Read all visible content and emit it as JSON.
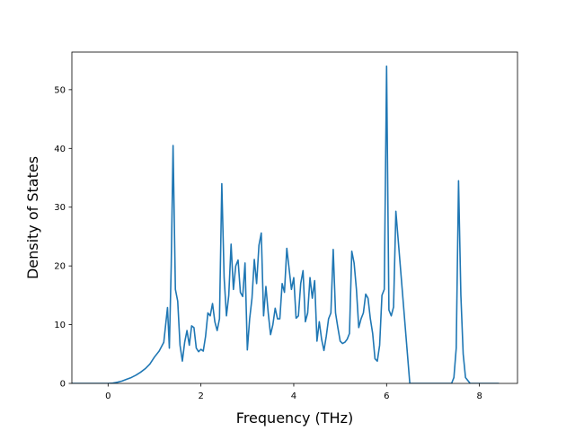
{
  "chart_data": {
    "type": "line",
    "title": "",
    "xlabel": "Frequency (THz)",
    "ylabel": "Density of States",
    "xlim": [
      -0.78,
      8.82
    ],
    "ylim": [
      0,
      56.4
    ],
    "xticks": [
      0,
      2,
      4,
      6,
      8
    ],
    "yticks": [
      0,
      10,
      20,
      30,
      40,
      50
    ],
    "grid": false,
    "color": "#1f77b4",
    "series": [
      {
        "x": [
          -0.8,
          -0.5,
          -0.2,
          0.0,
          0.1,
          0.2,
          0.3,
          0.4,
          0.5,
          0.6,
          0.7,
          0.8,
          0.9,
          1.0,
          1.1,
          1.2,
          1.28,
          1.32,
          1.36,
          1.4,
          1.45,
          1.5,
          1.55,
          1.6,
          1.65,
          1.7,
          1.75,
          1.8,
          1.85,
          1.9,
          1.95,
          2.0,
          2.05,
          2.1,
          2.15,
          2.2,
          2.25,
          2.3,
          2.35,
          2.4,
          2.45,
          2.5,
          2.55,
          2.6,
          2.65,
          2.7,
          2.75,
          2.8,
          2.85,
          2.9,
          2.95,
          3.0,
          3.05,
          3.1,
          3.15,
          3.2,
          3.25,
          3.3,
          3.35,
          3.4,
          3.45,
          3.5,
          3.55,
          3.6,
          3.65,
          3.7,
          3.75,
          3.8,
          3.85,
          3.9,
          3.95,
          4.0,
          4.05,
          4.1,
          4.15,
          4.2,
          4.25,
          4.3,
          4.35,
          4.4,
          4.45,
          4.5,
          4.55,
          4.6,
          4.65,
          4.7,
          4.75,
          4.8,
          4.85,
          4.9,
          4.95,
          5.0,
          5.05,
          5.1,
          5.15,
          5.2,
          5.25,
          5.3,
          5.35,
          5.4,
          5.45,
          5.5,
          5.55,
          5.6,
          5.65,
          5.7,
          5.75,
          5.8,
          5.85,
          5.9,
          5.95,
          6.0,
          6.05,
          6.1,
          6.15,
          6.2,
          6.5,
          7.0,
          7.3,
          7.35,
          7.4,
          7.45,
          7.5,
          7.55,
          7.6,
          7.65,
          7.7,
          7.8,
          8.0,
          8.42
        ],
        "y": [
          0,
          0,
          0,
          0,
          0.05,
          0.2,
          0.4,
          0.7,
          1.0,
          1.4,
          1.9,
          2.5,
          3.3,
          4.5,
          5.5,
          7.0,
          12.9,
          6.0,
          20.0,
          40.5,
          16.0,
          14.0,
          6.5,
          3.8,
          7.0,
          9.0,
          6.5,
          9.8,
          9.5,
          6.0,
          5.4,
          5.8,
          5.5,
          8.0,
          12.0,
          11.5,
          13.6,
          10.5,
          9.0,
          11.0,
          34.0,
          18.0,
          11.5,
          15.0,
          23.7,
          16.0,
          20.0,
          21.0,
          15.5,
          14.8,
          20.5,
          5.7,
          11.0,
          14.5,
          21.1,
          17.0,
          23.5,
          25.6,
          11.5,
          16.5,
          12.0,
          8.3,
          10.0,
          12.8,
          11.0,
          11.0,
          17.0,
          15.5,
          23.0,
          19.5,
          16.0,
          18.0,
          11.1,
          11.5,
          17.0,
          19.2,
          10.5,
          12.0,
          18.0,
          14.5,
          17.5,
          7.2,
          10.5,
          7.5,
          5.6,
          8.0,
          11.0,
          12.0,
          22.8,
          12.0,
          9.5,
          7.2,
          6.8,
          7.0,
          7.5,
          8.5,
          22.5,
          20.5,
          16.0,
          9.5,
          11.0,
          12.0,
          15.2,
          14.5,
          11.0,
          8.5,
          4.2,
          3.8,
          6.5,
          15.0,
          16.0,
          54.0,
          12.5,
          11.5,
          13.0,
          29.3,
          0,
          0,
          0,
          0,
          0,
          1.0,
          6.0,
          34.5,
          15.0,
          5.0,
          1.0,
          0,
          0,
          0
        ]
      }
    ]
  }
}
